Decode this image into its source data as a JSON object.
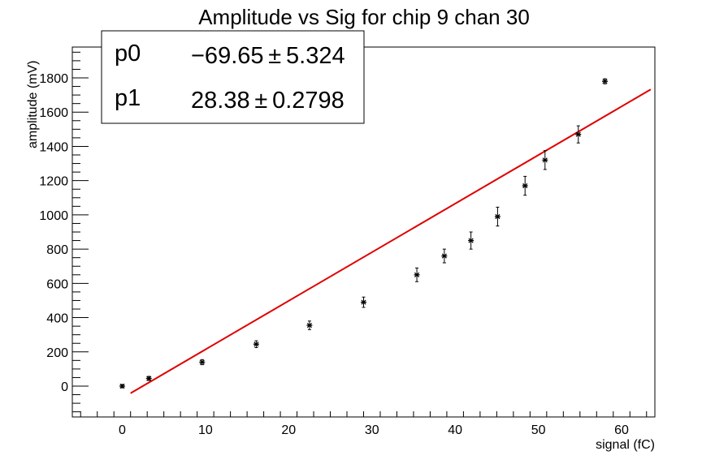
{
  "chart_data": {
    "type": "scatter",
    "title": "Amplitude vs Sig for chip 9 chan 30",
    "xlabel": "signal (fC)",
    "ylabel": "amplitude (mV)",
    "xlim": [
      -6,
      64
    ],
    "ylim": [
      -180,
      1980
    ],
    "x_ticks": [
      0,
      10,
      20,
      30,
      40,
      50,
      60
    ],
    "y_ticks": [
      0,
      200,
      400,
      600,
      800,
      1000,
      1200,
      1400,
      1600,
      1800
    ],
    "grid": false,
    "series": [
      {
        "x": [
          0,
          3.2,
          9.6,
          16.1,
          22.5,
          29.0,
          35.4,
          38.7,
          41.9,
          45.1,
          48.4,
          50.8,
          54.8,
          58.0
        ],
        "y": [
          0,
          45,
          140,
          245,
          355,
          490,
          650,
          760,
          850,
          990,
          1170,
          1320,
          1470,
          1780
        ],
        "yerr": [
          10,
          12,
          15,
          20,
          25,
          30,
          40,
          40,
          50,
          55,
          55,
          55,
          50,
          15
        ]
      }
    ],
    "fit": {
      "x_range": [
        1.0,
        63.5
      ],
      "p0": -69.65,
      "p1": 28.38,
      "color": "#e00000"
    },
    "stats_box": {
      "rows": [
        {
          "name": "p0",
          "value": "−69.65 ± 5.324"
        },
        {
          "name": "p1",
          "value": "28.38 ± 0.2798"
        }
      ]
    }
  }
}
